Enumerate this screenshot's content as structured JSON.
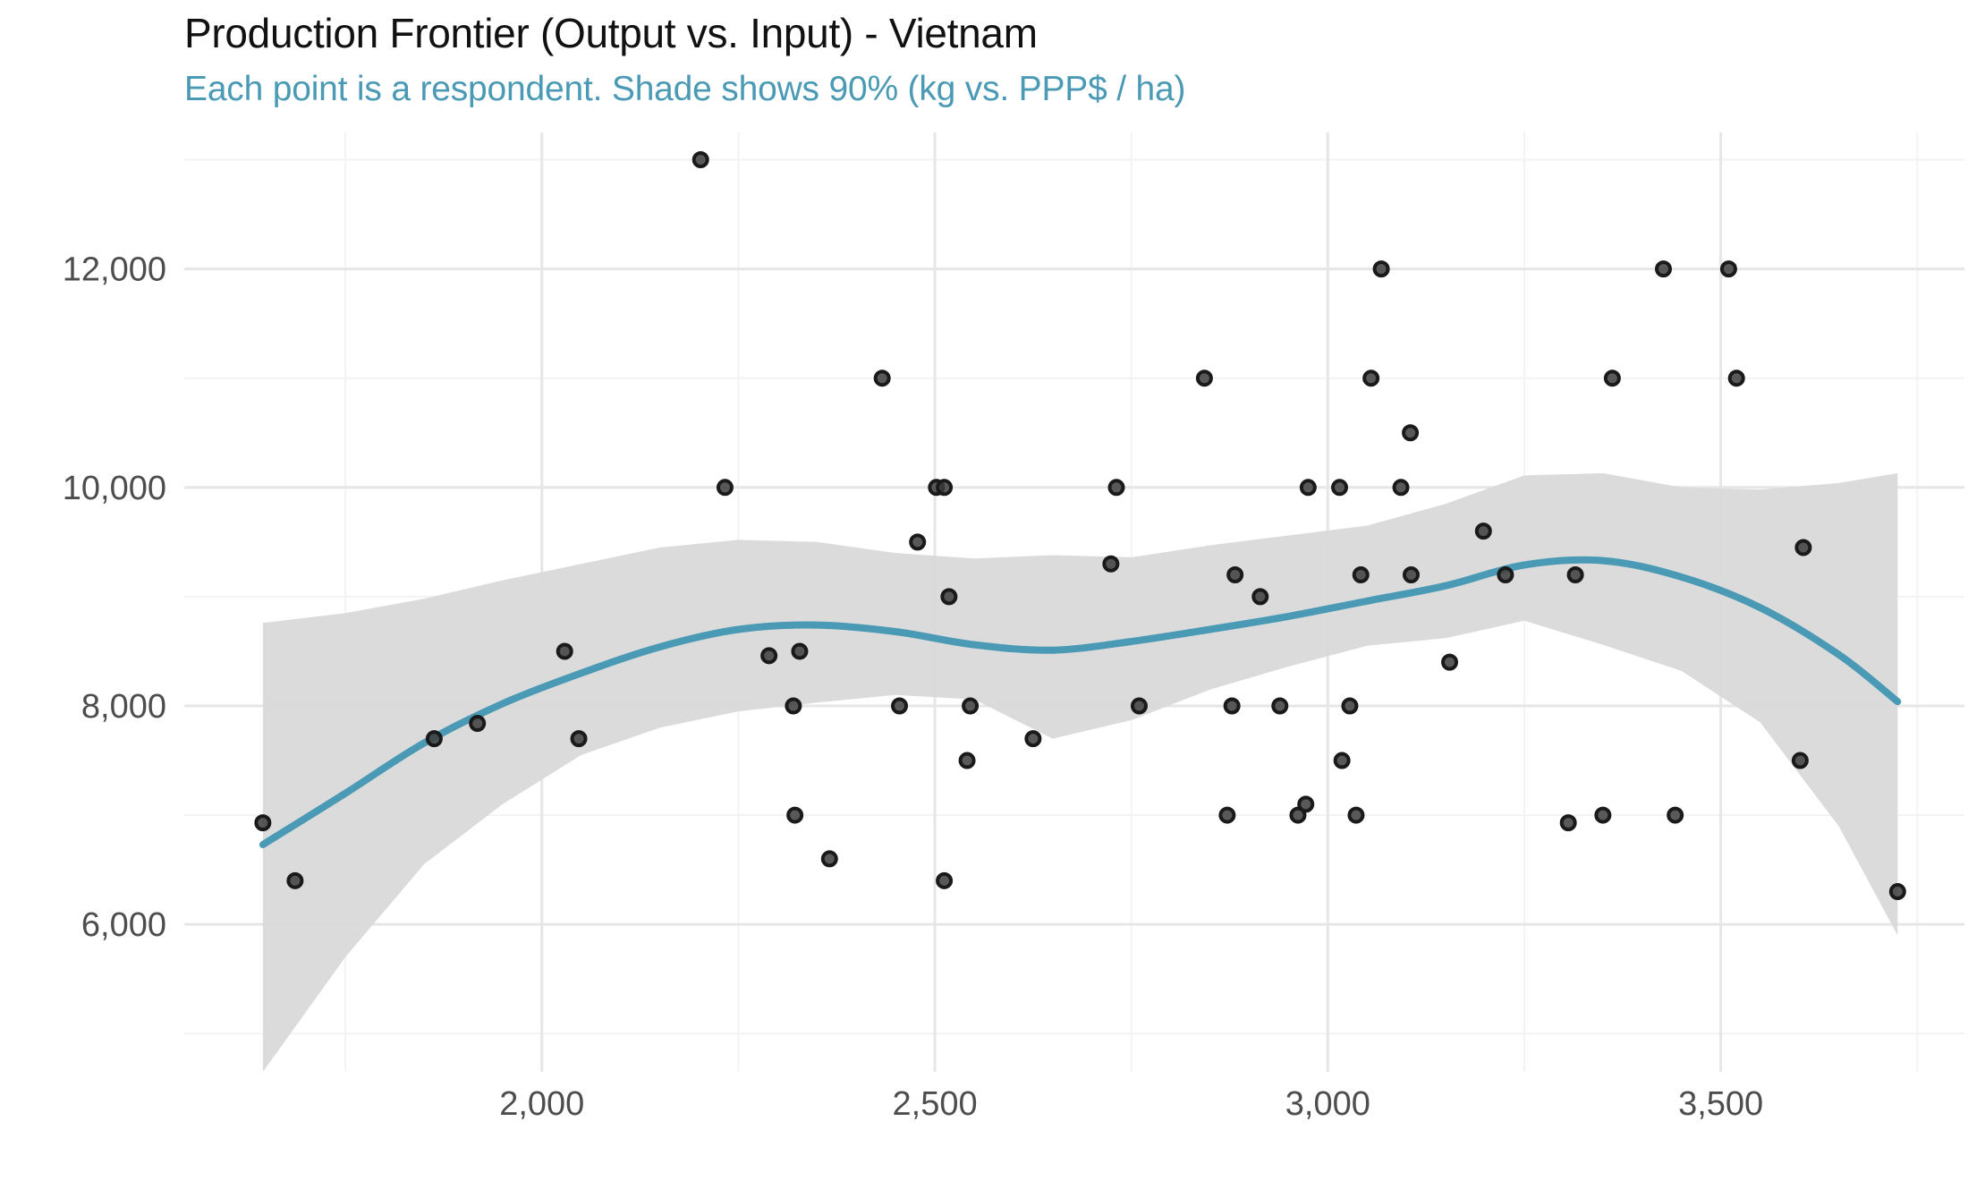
{
  "chart_data": {
    "type": "scatter",
    "title": "Production Frontier (Output vs. Input) - Vietnam",
    "subtitle": "Each point is a respondent. Shade shows 90% (kg vs. PPP$ / ha)",
    "xlabel": "",
    "ylabel": "",
    "xlim": [
      1545,
      3810
    ],
    "ylim": [
      4650,
      13250
    ],
    "x_major_ticks": [
      2000,
      2500,
      3000,
      3500
    ],
    "x_tick_labels": [
      "2,000",
      "2,500",
      "3,000",
      "3,500"
    ],
    "x_minor_ticks": [
      1750,
      2250,
      2750,
      3250,
      3750
    ],
    "y_major_ticks": [
      6000,
      8000,
      10000,
      12000
    ],
    "y_tick_labels": [
      "6,000",
      "8,000",
      "10,000",
      "12,000"
    ],
    "y_minor_ticks": [
      5000,
      7000,
      9000,
      11000,
      13000
    ],
    "grid": true,
    "legend": "none",
    "colors": {
      "points": "#1a1a1a",
      "trend_line": "#4a9ab5",
      "ribbon": "#d9d9d9",
      "grid_major": "#e6e6e6",
      "grid_minor": "#f3f3f3"
    },
    "points": [
      {
        "x": 1645,
        "y": 6930
      },
      {
        "x": 1686,
        "y": 6400
      },
      {
        "x": 1863,
        "y": 7700
      },
      {
        "x": 1918,
        "y": 7840
      },
      {
        "x": 2029,
        "y": 8500
      },
      {
        "x": 2047,
        "y": 7700
      },
      {
        "x": 2202,
        "y": 13000
      },
      {
        "x": 2233,
        "y": 10000
      },
      {
        "x": 2289,
        "y": 8460
      },
      {
        "x": 2320,
        "y": 8000
      },
      {
        "x": 2322,
        "y": 7000
      },
      {
        "x": 2328,
        "y": 8500
      },
      {
        "x": 2366,
        "y": 6600
      },
      {
        "x": 2433,
        "y": 11000
      },
      {
        "x": 2455,
        "y": 8000
      },
      {
        "x": 2478,
        "y": 9500
      },
      {
        "x": 2502,
        "y": 10000
      },
      {
        "x": 2512,
        "y": 10000
      },
      {
        "x": 2512,
        "y": 6400
      },
      {
        "x": 2518,
        "y": 9000
      },
      {
        "x": 2541,
        "y": 7500
      },
      {
        "x": 2545,
        "y": 8000
      },
      {
        "x": 2625,
        "y": 7700
      },
      {
        "x": 2724,
        "y": 9300
      },
      {
        "x": 2731,
        "y": 10000
      },
      {
        "x": 2760,
        "y": 8000
      },
      {
        "x": 2843,
        "y": 11000
      },
      {
        "x": 2872,
        "y": 7000
      },
      {
        "x": 2878,
        "y": 8000
      },
      {
        "x": 2882,
        "y": 9200
      },
      {
        "x": 2914,
        "y": 9000
      },
      {
        "x": 2939,
        "y": 8000
      },
      {
        "x": 2962,
        "y": 7000
      },
      {
        "x": 2972,
        "y": 7100
      },
      {
        "x": 2975,
        "y": 10000
      },
      {
        "x": 3015,
        "y": 10000
      },
      {
        "x": 3018,
        "y": 7500
      },
      {
        "x": 3028,
        "y": 8000
      },
      {
        "x": 3036,
        "y": 7000
      },
      {
        "x": 3042,
        "y": 9200
      },
      {
        "x": 3055,
        "y": 11000
      },
      {
        "x": 3068,
        "y": 12000
      },
      {
        "x": 3093,
        "y": 10000
      },
      {
        "x": 3105,
        "y": 10500
      },
      {
        "x": 3106,
        "y": 9200
      },
      {
        "x": 3155,
        "y": 8400
      },
      {
        "x": 3198,
        "y": 9600
      },
      {
        "x": 3226,
        "y": 9200
      },
      {
        "x": 3306,
        "y": 6930
      },
      {
        "x": 3315,
        "y": 9200
      },
      {
        "x": 3350,
        "y": 7000
      },
      {
        "x": 3362,
        "y": 11000
      },
      {
        "x": 3427,
        "y": 12000
      },
      {
        "x": 3442,
        "y": 7000
      },
      {
        "x": 3510,
        "y": 12000
      },
      {
        "x": 3520,
        "y": 11000
      },
      {
        "x": 3601,
        "y": 7500
      },
      {
        "x": 3605,
        "y": 9450
      },
      {
        "x": 3725,
        "y": 6300
      }
    ],
    "trend": {
      "name": "",
      "x": [
        1645,
        1750,
        1850,
        1950,
        2050,
        2150,
        2250,
        2350,
        2450,
        2550,
        2650,
        2750,
        2850,
        2950,
        3050,
        3150,
        3250,
        3350,
        3450,
        3550,
        3650,
        3725
      ],
      "y": [
        6730,
        7200,
        7660,
        8020,
        8300,
        8540,
        8700,
        8740,
        8680,
        8560,
        8510,
        8590,
        8700,
        8820,
        8960,
        9100,
        9290,
        9330,
        9180,
        8900,
        8470,
        8040
      ],
      "lower": [
        4650,
        5700,
        6550,
        7100,
        7550,
        7800,
        7950,
        8030,
        8100,
        8060,
        7700,
        7870,
        8150,
        8360,
        8550,
        8620,
        8780,
        8560,
        8320,
        7850,
        6900,
        5900
      ],
      "upper": [
        8760,
        8850,
        8980,
        9150,
        9300,
        9450,
        9520,
        9500,
        9400,
        9350,
        9380,
        9360,
        9470,
        9560,
        9650,
        9850,
        10110,
        10130,
        10000,
        9980,
        10040,
        10130
      ]
    }
  }
}
